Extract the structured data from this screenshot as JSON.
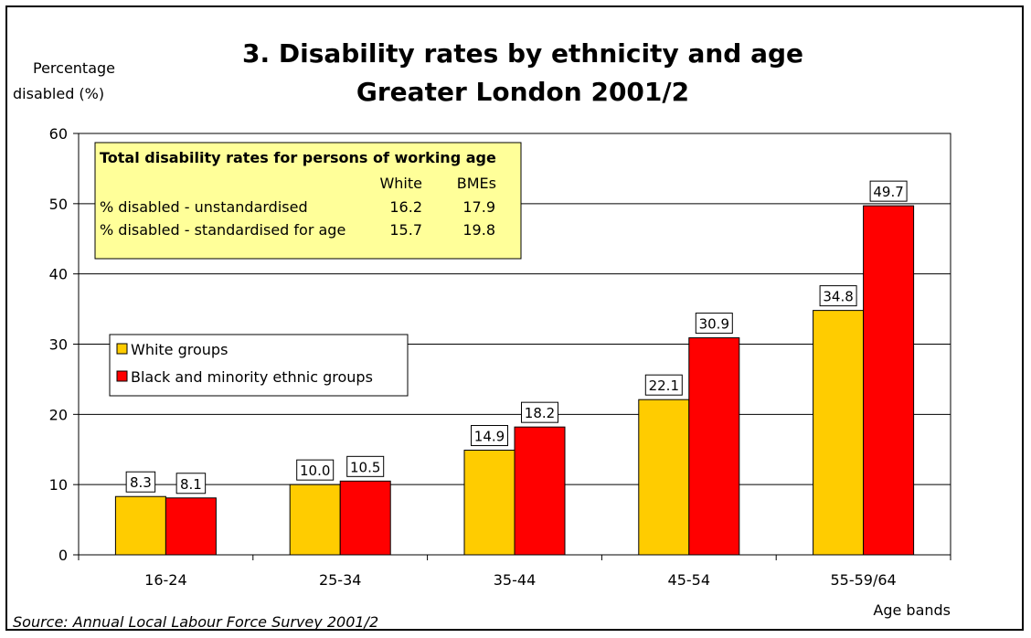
{
  "chart_data": {
    "type": "bar",
    "title_line1": "3. Disability rates by ethnicity and age",
    "title_line2": "Greater London 2001/2",
    "ylabel_line1": "Percentage",
    "ylabel_line2": "disabled (%)",
    "xlabel": "Age bands",
    "ylim": [
      0,
      60
    ],
    "yticks": [
      "0",
      "10",
      "20",
      "30",
      "40",
      "50",
      "60"
    ],
    "grid": true,
    "legend_position": "middle-left",
    "categories": [
      "16-24",
      "25-34",
      "35-44",
      "45-54",
      "55-59/64"
    ],
    "series": [
      {
        "name": "White groups",
        "color": "#FFCC00",
        "values": [
          8.3,
          10.0,
          14.9,
          22.1,
          34.8
        ],
        "labels": [
          "8.3",
          "10.0",
          "14.9",
          "22.1",
          "34.8"
        ]
      },
      {
        "name": "Black and minority ethnic groups",
        "color": "#FF0000",
        "values": [
          8.1,
          10.5,
          18.2,
          30.9,
          49.7
        ],
        "labels": [
          "8.1",
          "10.5",
          "18.2",
          "30.9",
          "49.7"
        ]
      }
    ],
    "inset_table": {
      "title": "Total disability rates for persons of working age",
      "col1": "White",
      "col2": "BMEs",
      "rows": [
        {
          "label": "% disabled  - unstandardised",
          "white": "16.2",
          "bmes": "17.9"
        },
        {
          "label": "% disabled  - standardised for age",
          "white": "15.7",
          "bmes": "19.8"
        }
      ],
      "background": "#FFFF99"
    },
    "source": "Source: Annual Local Labour Force Survey 2001/2"
  }
}
